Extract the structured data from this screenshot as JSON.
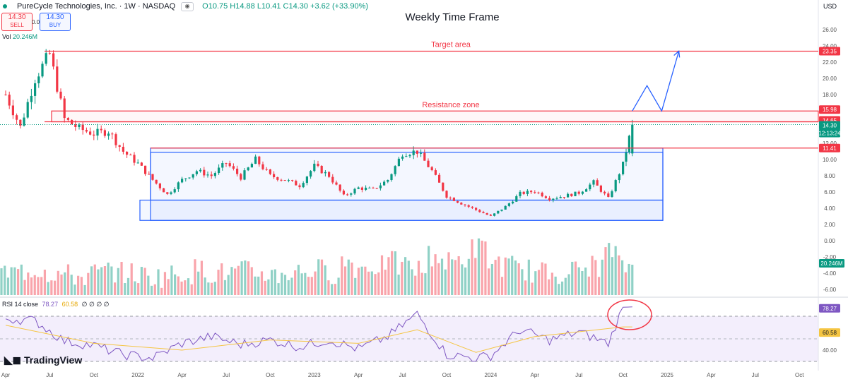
{
  "header": {
    "title": "PureCycle Technologies, Inc. · 1W · NASDAQ",
    "ohlc": "O10.75 H14.88 L10.41 C14.30 +3.62 (+33.90%)",
    "sell_price": "14.30",
    "sell_label": "SELL",
    "spread": "0.00",
    "buy_price": "14.30",
    "buy_label": "BUY",
    "volume_label": "Vol",
    "volume_value": "20.246M",
    "currency": "USD"
  },
  "chart_data": {
    "type": "candlestick",
    "title": "Weekly Time Frame",
    "price_axis_ticks": [
      "26.00",
      "24.00",
      "22.00",
      "20.00",
      "18.00",
      "16.00",
      "14.00",
      "12.00",
      "10.00",
      "8.00",
      "6.00",
      "4.00",
      "2.00",
      "0.00",
      "-2.00",
      "-4.00",
      "-6.00"
    ],
    "price_axis_values": [
      26,
      24,
      22,
      20,
      18,
      16,
      14,
      12,
      10,
      8,
      6,
      4,
      2,
      0,
      -2,
      -4,
      -6
    ],
    "time_axis": [
      {
        "label": "Apr",
        "x": "2021-04"
      },
      {
        "label": "Jul",
        "x": "2021-07"
      },
      {
        "label": "Oct",
        "x": "2021-10"
      },
      {
        "label": "2022",
        "x": "2022-01"
      },
      {
        "label": "Apr",
        "x": "2022-04"
      },
      {
        "label": "Jul",
        "x": "2022-07"
      },
      {
        "label": "Oct",
        "x": "2022-10"
      },
      {
        "label": "2023",
        "x": "2023-01"
      },
      {
        "label": "Apr",
        "x": "2023-04"
      },
      {
        "label": "Jul",
        "x": "2023-07"
      },
      {
        "label": "Oct",
        "x": "2023-10"
      },
      {
        "label": "2024",
        "x": "2024-01"
      },
      {
        "label": "Apr",
        "x": "2024-04"
      },
      {
        "label": "Jul",
        "x": "2024-07"
      },
      {
        "label": "Oct",
        "x": "2024-10"
      },
      {
        "label": "2025",
        "x": "2025-01"
      },
      {
        "label": "Apr",
        "x": "2025-04"
      },
      {
        "label": "Jul",
        "x": "2025-07"
      },
      {
        "label": "Oct",
        "x": "2025-10"
      }
    ],
    "price_series": [
      {
        "x": "2021-04",
        "close": 18
      },
      {
        "x": "2021-05",
        "close": 14
      },
      {
        "x": "2021-06",
        "close": 20
      },
      {
        "x": "2021-07",
        "close": 23
      },
      {
        "x": "2021-08",
        "close": 15
      },
      {
        "x": "2021-09",
        "close": 13.8
      },
      {
        "x": "2021-10",
        "close": 13.2
      },
      {
        "x": "2021-11",
        "close": 13.5
      },
      {
        "x": "2021-12",
        "close": 11
      },
      {
        "x": "2022-01",
        "close": 9.5
      },
      {
        "x": "2022-02",
        "close": 7.5
      },
      {
        "x": "2022-03",
        "close": 5.7
      },
      {
        "x": "2022-04",
        "close": 7.5
      },
      {
        "x": "2022-05",
        "close": 8.6
      },
      {
        "x": "2022-06",
        "close": 8
      },
      {
        "x": "2022-07",
        "close": 9.6
      },
      {
        "x": "2022-08",
        "close": 7.8
      },
      {
        "x": "2022-09",
        "close": 10
      },
      {
        "x": "2022-10",
        "close": 8
      },
      {
        "x": "2022-11",
        "close": 7.5
      },
      {
        "x": "2022-12",
        "close": 6.8
      },
      {
        "x": "2023-01",
        "close": 9.2
      },
      {
        "x": "2023-02",
        "close": 8
      },
      {
        "x": "2023-03",
        "close": 5.5
      },
      {
        "x": "2023-04",
        "close": 6.5
      },
      {
        "x": "2023-05",
        "close": 6.3
      },
      {
        "x": "2023-06",
        "close": 7.5
      },
      {
        "x": "2023-07",
        "close": 10.8
      },
      {
        "x": "2023-08",
        "close": 11
      },
      {
        "x": "2023-09",
        "close": 8.6
      },
      {
        "x": "2023-10",
        "close": 5.5
      },
      {
        "x": "2023-11",
        "close": 4.6
      },
      {
        "x": "2023-12",
        "close": 3.8
      },
      {
        "x": "2024-01",
        "close": 3
      },
      {
        "x": "2024-02",
        "close": 4.2
      },
      {
        "x": "2024-03",
        "close": 5.8
      },
      {
        "x": "2024-04",
        "close": 6.1
      },
      {
        "x": "2024-05",
        "close": 5.2
      },
      {
        "x": "2024-06",
        "close": 5.5
      },
      {
        "x": "2024-07",
        "close": 5.9
      },
      {
        "x": "2024-08",
        "close": 7.2
      },
      {
        "x": "2024-09",
        "close": 5.2
      },
      {
        "x": "2024-10",
        "close": 9.4
      },
      {
        "x": "2024-10-20",
        "close": 14.3
      }
    ],
    "rsi": {
      "label": "RSI 14 close",
      "rsi_value": "78.27",
      "ma_value": "60.58",
      "extra": "∅ ∅ ∅ ∅",
      "axis_ticks": [
        "40.00"
      ],
      "upper_band": 70,
      "lower_band": 30,
      "series": [
        {
          "x": "2021-04",
          "v": 68
        },
        {
          "x": "2021-06",
          "v": 66
        },
        {
          "x": "2021-08",
          "v": 48
        },
        {
          "x": "2021-10",
          "v": 44
        },
        {
          "x": "2021-12",
          "v": 36
        },
        {
          "x": "2022-02",
          "v": 33
        },
        {
          "x": "2022-04",
          "v": 46
        },
        {
          "x": "2022-06",
          "v": 52
        },
        {
          "x": "2022-08",
          "v": 45
        },
        {
          "x": "2022-10",
          "v": 49
        },
        {
          "x": "2022-12",
          "v": 43
        },
        {
          "x": "2023-02",
          "v": 49
        },
        {
          "x": "2023-04",
          "v": 41
        },
        {
          "x": "2023-06",
          "v": 52
        },
        {
          "x": "2023-08",
          "v": 72
        },
        {
          "x": "2023-10",
          "v": 36
        },
        {
          "x": "2023-12",
          "v": 33
        },
        {
          "x": "2024-01",
          "v": 35
        },
        {
          "x": "2024-03",
          "v": 58
        },
        {
          "x": "2024-05",
          "v": 49
        },
        {
          "x": "2024-07",
          "v": 56
        },
        {
          "x": "2024-09",
          "v": 46
        },
        {
          "x": "2024-10",
          "v": 78
        }
      ],
      "ma_series": [
        {
          "x": "2021-04",
          "v": 62
        },
        {
          "x": "2021-10",
          "v": 46
        },
        {
          "x": "2022-04",
          "v": 40
        },
        {
          "x": "2022-10",
          "v": 49
        },
        {
          "x": "2023-04",
          "v": 46
        },
        {
          "x": "2023-08",
          "v": 58
        },
        {
          "x": "2023-12",
          "v": 38
        },
        {
          "x": "2024-04",
          "v": 52
        },
        {
          "x": "2024-10",
          "v": 60.58
        }
      ]
    },
    "volume_series_relative": [
      0.3,
      0.35,
      0.4,
      0.3,
      0.25,
      0.2,
      0.3,
      0.35,
      0.3,
      0.25,
      0.2,
      0.25,
      0.3,
      0.4,
      0.3,
      0.3,
      0.35,
      0.3,
      0.25,
      0.3,
      0.35,
      0.4,
      0.3,
      0.6,
      0.45,
      0.5,
      0.6,
      0.5,
      0.4,
      0.8,
      0.6,
      0.7,
      1.0,
      0.6,
      0.5,
      0.4,
      0.3,
      0.3,
      0.35,
      0.4,
      0.5,
      0.9,
      0.5
    ],
    "levels": [
      {
        "name": "target",
        "label": "Target area",
        "value": 23.35,
        "badge": "23.35"
      },
      {
        "name": "resistance-top",
        "label": "Resistance zone",
        "value": 15.98,
        "badge": "15.98"
      },
      {
        "name": "resistance-bottom",
        "label": "",
        "value": 14.65,
        "badge": "14.65"
      },
      {
        "name": "breakout",
        "label": "",
        "value": 11.41,
        "badge": "11.41"
      }
    ],
    "current_price": {
      "value": 14.3,
      "badge": "14.30",
      "countdown": "12:13:24"
    },
    "volume_badge": "20.246M",
    "rsi_badge": "78.27",
    "rsi_ma_badge": "60.58",
    "range_box": {
      "top": 11.41,
      "bottom": 2.5,
      "inner_top": 10.9,
      "inner_bottom": 5.0
    },
    "projection": [
      {
        "x": "2024-10-20",
        "y": 15.98
      },
      {
        "x": "2024-11-20",
        "y": 19.1
      },
      {
        "x": "2024-12-20",
        "y": 15.98
      },
      {
        "x": "2025-01-25",
        "y": 23.35
      }
    ],
    "colors": {
      "up": "#089981",
      "down": "#f23645",
      "rsi": "#7e57c2",
      "rsi_ma": "#f5c542",
      "box": "#2962ff",
      "level": "#f23645"
    }
  },
  "branding": {
    "logo_text": "TradingView"
  }
}
